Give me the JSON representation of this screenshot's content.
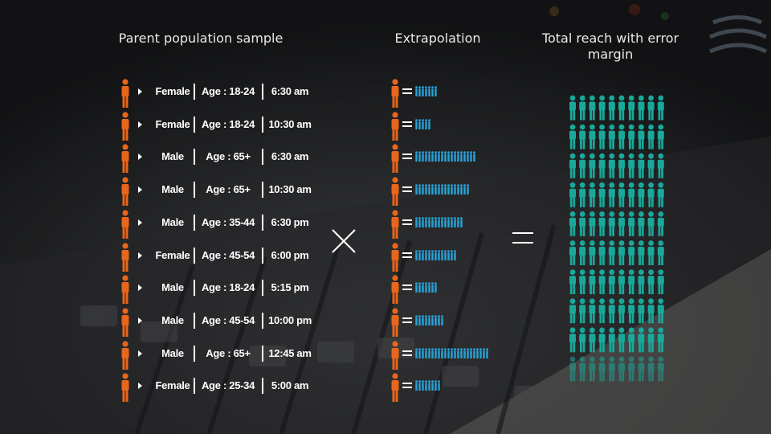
{
  "headings": {
    "sample": "Parent population sample",
    "extrapolation": "Extrapolation",
    "total": "Total reach with error margin"
  },
  "rows": [
    {
      "gender": "Female",
      "age": "Age : 18-24",
      "time": "6:30 am",
      "extrapolation": 7
    },
    {
      "gender": "Female",
      "age": "Age : 18-24",
      "time": "10:30 am",
      "extrapolation": 5
    },
    {
      "gender": "Male",
      "age": "Age : 65+",
      "time": "6:30 am",
      "extrapolation": 19
    },
    {
      "gender": "Male",
      "age": "Age : 65+",
      "time": "10:30 am",
      "extrapolation": 17
    },
    {
      "gender": "Male",
      "age": "Age : 35-44",
      "time": "6:30 pm",
      "extrapolation": 15
    },
    {
      "gender": "Female",
      "age": "Age : 45-54",
      "time": "6:00 pm",
      "extrapolation": 13
    },
    {
      "gender": "Male",
      "age": "Age : 18-24",
      "time": "5:15 pm",
      "extrapolation": 7
    },
    {
      "gender": "Male",
      "age": "Age : 45-54",
      "time": "10:00 pm",
      "extrapolation": 9
    },
    {
      "gender": "Male",
      "age": "Age : 65+",
      "time": "12:45 am",
      "extrapolation": 23
    },
    {
      "gender": "Female",
      "age": "Age : 25-34",
      "time": "5:00 am",
      "extrapolation": 8
    }
  ],
  "total_reach": {
    "columns": 10,
    "rows": 10,
    "faded_rows": 1
  },
  "colors": {
    "sample_person": "#e8661c",
    "reach_person": "#1aa89a",
    "extrapolation_person": "#2aa3d8",
    "text": "#ffffff"
  },
  "icons": {
    "sample": "person-icon",
    "arrow": "play-arrow-icon",
    "operator_1": "multiply-icon",
    "operator_2": "equals-icon"
  }
}
